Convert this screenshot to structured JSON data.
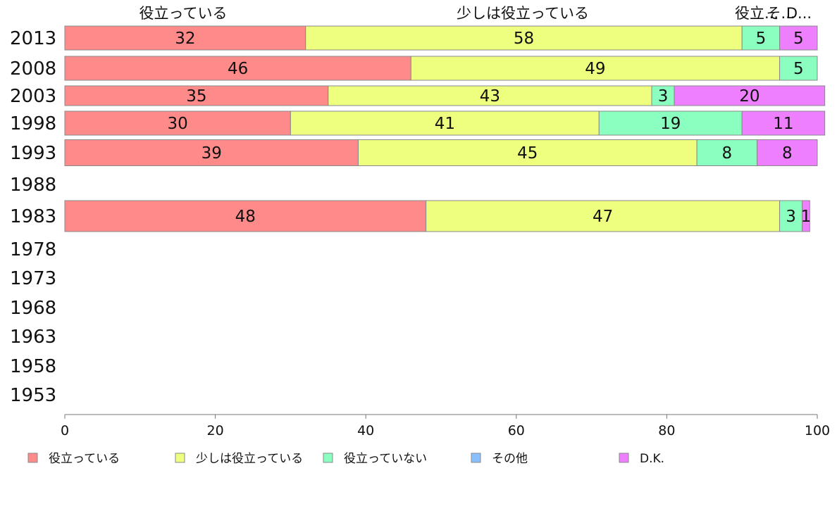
{
  "chart_data": {
    "type": "bar",
    "orientation": "horizontal",
    "stacked": true,
    "categories": [
      "2013",
      "2008",
      "2003",
      "1998",
      "1993",
      "1988",
      "1983",
      "1978",
      "1973",
      "1968",
      "1963",
      "1958",
      "1953"
    ],
    "series": [
      {
        "name": "役立っている",
        "color": "#ff8a8a",
        "values": [
          32,
          46,
          35,
          30,
          39,
          null,
          48,
          null,
          null,
          null,
          null,
          null,
          null
        ]
      },
      {
        "name": "少しは役立っている",
        "color": "#eeff80",
        "values": [
          58,
          49,
          43,
          41,
          45,
          null,
          47,
          null,
          null,
          null,
          null,
          null,
          null
        ]
      },
      {
        "name": "役立っていない",
        "color": "#8affc0",
        "values": [
          5,
          5,
          3,
          19,
          8,
          null,
          3,
          null,
          null,
          null,
          null,
          null,
          null
        ]
      },
      {
        "name": "その他",
        "color": "#8abfff",
        "values": [
          0,
          0,
          0,
          0,
          0,
          null,
          0,
          null,
          null,
          null,
          null,
          null,
          null
        ]
      },
      {
        "name": "D.K.",
        "color": "#ee80ff",
        "values": [
          5,
          0,
          20,
          11,
          8,
          null,
          1,
          null,
          null,
          null,
          null,
          null,
          null
        ]
      }
    ],
    "top_labels": [
      "役立っている",
      "少しは役立っている",
      "役立...",
      "そ...",
      "D..."
    ],
    "xlim": [
      0,
      100
    ],
    "xticks": [
      0,
      20,
      40,
      60,
      80,
      100
    ],
    "grid": false,
    "legend_position": "bottom"
  }
}
